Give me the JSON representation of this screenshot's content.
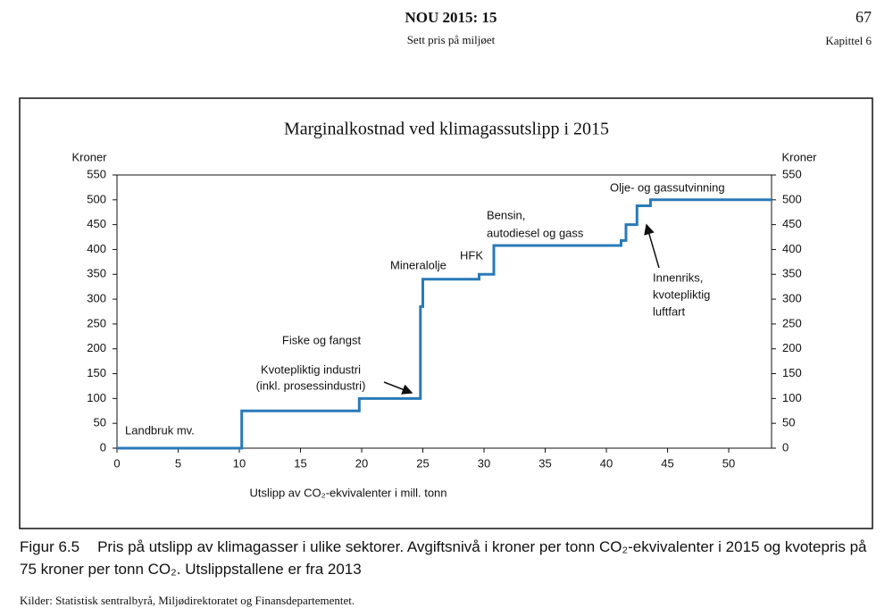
{
  "header": {
    "title": "NOU 2015: 15",
    "subtitle": "Sett pris på miljøet",
    "page": "67",
    "chapter": "Kapittel 6"
  },
  "chart_data": {
    "type": "line",
    "title": "Marginalkostnad ved klimagassutslipp i 2015",
    "x_label": "Utslipp av CO₂-ekvivalenter i mill. tonn",
    "y_label": "Kroner",
    "y2_label": "Kroner",
    "x": [
      0,
      10.2,
      10.2,
      19.8,
      19.8,
      24.8,
      24.8,
      25,
      25,
      29.6,
      29.6,
      30.8,
      30.8,
      41.2,
      41.2,
      41.6,
      41.6,
      42.5,
      42.5,
      43.6,
      43.6,
      53.5
    ],
    "series": [
      {
        "color": "#2a7ab8",
        "values": [
          0,
          0,
          75,
          75,
          100,
          100,
          285,
          285,
          340,
          340,
          350,
          350,
          408,
          408,
          418,
          418,
          450,
          450,
          488,
          488,
          500,
          500
        ]
      }
    ],
    "xlim": [
      0,
      53.5
    ],
    "xticks": [
      0,
      5,
      10,
      15,
      20,
      25,
      30,
      35,
      40,
      45,
      50
    ],
    "ylim": [
      0,
      550
    ],
    "yticks": [
      0,
      50,
      100,
      150,
      200,
      250,
      300,
      350,
      400,
      450,
      500,
      550
    ],
    "y2lim": [
      0,
      550
    ],
    "y2ticks": [
      0,
      50,
      100,
      150,
      200,
      250,
      300,
      350,
      400,
      450,
      500,
      550
    ],
    "grid": false,
    "annotations": [
      "Landbruk mv.",
      "Fiske og fangst",
      "Kvotepliktig industri",
      "(inkl. prosessindustri)",
      "Mineralolje",
      "HFK",
      "Bensin,",
      "autodiesel og gass",
      "Olje- og gassutvinning",
      "Innenriks,",
      "kvotepliktig",
      "luftfart"
    ]
  },
  "caption": {
    "label": "Figur 6.5",
    "text": "Pris på utslipp av klimagasser i ulike sektorer. Avgiftsnivå i kroner per tonn CO₂-ekvivalenter i 2015 og kvotepris på 75 kroner per tonn CO₂. Utslippstallene er fra 2013"
  },
  "source": "Kilder: Statistisk sentralbyrå, Miljødirektoratet og Finansdepartementet."
}
